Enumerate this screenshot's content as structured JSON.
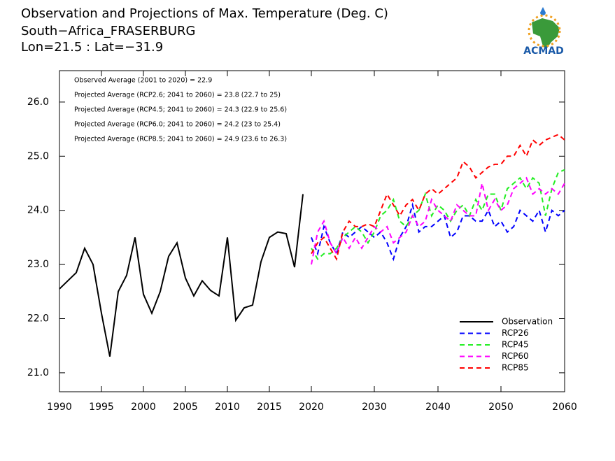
{
  "chart_data": {
    "type": "line",
    "title": "Observation and Projections of Max. Temperature (Deg. C)",
    "subtitle": "South−Africa_FRASERBURG",
    "location": "Lon=21.5 : Lat=−31.9",
    "logo_text": "ACMAD",
    "annotations": [
      "Observed Average (2001 to 2020) = 22.9",
      "Projected Average (RCP2.6; 2041 to 2060) = 23.8 (22.7 to 25)",
      "Projected Average (RCP4.5; 2041 to 2060) = 24.3 (22.9 to 25.6)",
      "Projected Average (RCP6.0; 2041 to 2060) = 24.2 (23 to 25.4)",
      "Projected Average (RCP8.5; 2041 to 2060) = 24.9 (23.6 to 26.3)"
    ],
    "xlim": [
      1990,
      2060
    ],
    "xticks": [
      1990,
      1995,
      2000,
      2005,
      2010,
      2015,
      2020,
      2030,
      2040,
      2050,
      2060
    ],
    "ylim": [
      20.65,
      26.58
    ],
    "yticks": [
      {
        "value": 21,
        "label": "21.0"
      },
      {
        "value": 22,
        "label": "22.0"
      },
      {
        "value": 23,
        "label": "23.0"
      },
      {
        "value": 24,
        "label": "24.0"
      },
      {
        "value": 25,
        "label": "25.0"
      },
      {
        "value": 26,
        "label": "26.0"
      }
    ],
    "legend": "lower right",
    "series": [
      {
        "name": "Observation",
        "color": "#000000",
        "dashed": false,
        "x": [
          1990,
          1991,
          1992,
          1993,
          1994,
          1995,
          1996,
          1997,
          1998,
          1999,
          2000,
          2001,
          2002,
          2003,
          2004,
          2005,
          2006,
          2007,
          2008,
          2009,
          2010,
          2011,
          2012,
          2013,
          2014,
          2015,
          2016,
          2017,
          2018,
          2019
        ],
        "values": [
          22.55,
          22.7,
          22.85,
          23.3,
          23.0,
          22.1,
          21.3,
          22.5,
          22.8,
          23.5,
          22.45,
          22.1,
          22.5,
          23.15,
          23.4,
          22.75,
          22.42,
          22.7,
          22.52,
          22.42,
          23.5,
          21.97,
          22.2,
          22.25,
          23.05,
          23.5,
          23.6,
          23.57,
          22.95,
          24.3
        ]
      },
      {
        "name": "RCP26",
        "color": "#0000ff",
        "dashed": true,
        "x": [
          2020,
          2021,
          2022,
          2023,
          2024,
          2025,
          2026,
          2027,
          2028,
          2029,
          2030,
          2031,
          2032,
          2033,
          2034,
          2035,
          2036,
          2037,
          2038,
          2039,
          2040,
          2041,
          2042,
          2043,
          2044,
          2045,
          2046,
          2047,
          2048,
          2049,
          2050,
          2051,
          2052,
          2053,
          2054,
          2055,
          2056,
          2057,
          2058,
          2059,
          2060
        ],
        "values": [
          23.5,
          23.2,
          23.7,
          23.4,
          23.2,
          23.6,
          23.5,
          23.6,
          23.7,
          23.6,
          23.5,
          23.6,
          23.4,
          23.1,
          23.5,
          23.7,
          24.1,
          23.6,
          23.7,
          23.7,
          23.8,
          23.9,
          23.5,
          23.6,
          23.9,
          23.9,
          23.8,
          23.8,
          24.0,
          23.7,
          23.8,
          23.6,
          23.7,
          24.0,
          23.9,
          23.8,
          24.0,
          23.6,
          24.0,
          23.9,
          24.0
        ]
      },
      {
        "name": "RCP45",
        "color": "#22ee22",
        "dashed": true,
        "x": [
          2020,
          2021,
          2022,
          2023,
          2024,
          2025,
          2026,
          2027,
          2028,
          2029,
          2030,
          2031,
          2032,
          2033,
          2034,
          2035,
          2036,
          2037,
          2038,
          2039,
          2040,
          2041,
          2042,
          2043,
          2044,
          2045,
          2046,
          2047,
          2048,
          2049,
          2050,
          2051,
          2052,
          2053,
          2054,
          2055,
          2056,
          2057,
          2058,
          2059,
          2060
        ],
        "values": [
          23.3,
          23.1,
          23.2,
          23.2,
          23.3,
          23.5,
          23.6,
          23.7,
          23.6,
          23.4,
          23.6,
          23.9,
          24.0,
          24.2,
          23.8,
          23.7,
          23.9,
          24.0,
          24.3,
          23.9,
          24.1,
          24.0,
          23.8,
          24.0,
          24.1,
          23.9,
          24.2,
          24.0,
          24.3,
          24.3,
          24.0,
          24.4,
          24.5,
          24.6,
          24.4,
          24.6,
          24.5,
          23.9,
          24.4,
          24.7,
          24.75
        ]
      },
      {
        "name": "RCP60",
        "color": "#ff00ff",
        "dashed": true,
        "x": [
          2020,
          2021,
          2022,
          2023,
          2024,
          2025,
          2026,
          2027,
          2028,
          2029,
          2030,
          2031,
          2032,
          2033,
          2034,
          2035,
          2036,
          2037,
          2038,
          2039,
          2040,
          2041,
          2042,
          2043,
          2044,
          2045,
          2046,
          2047,
          2048,
          2049,
          2050,
          2051,
          2052,
          2053,
          2054,
          2055,
          2056,
          2057,
          2058,
          2059,
          2060
        ],
        "values": [
          23.0,
          23.6,
          23.8,
          23.4,
          23.2,
          23.5,
          23.3,
          23.5,
          23.3,
          23.5,
          23.7,
          23.6,
          23.7,
          23.4,
          23.5,
          23.6,
          23.9,
          23.7,
          23.8,
          24.2,
          24.0,
          23.9,
          23.8,
          24.1,
          24.0,
          23.9,
          23.9,
          24.5,
          24.0,
          24.2,
          24.0,
          24.1,
          24.4,
          24.5,
          24.6,
          24.3,
          24.4,
          24.3,
          24.4,
          24.3,
          24.5
        ]
      },
      {
        "name": "RCP85",
        "color": "#ff0000",
        "dashed": true,
        "x": [
          2020,
          2021,
          2022,
          2023,
          2024,
          2025,
          2026,
          2027,
          2028,
          2029,
          2030,
          2031,
          2032,
          2033,
          2034,
          2035,
          2036,
          2037,
          2038,
          2039,
          2040,
          2041,
          2042,
          2043,
          2044,
          2045,
          2046,
          2047,
          2048,
          2049,
          2050,
          2051,
          2052,
          2053,
          2054,
          2055,
          2056,
          2057,
          2058,
          2059,
          2060
        ],
        "values": [
          23.2,
          23.4,
          23.5,
          23.3,
          23.1,
          23.6,
          23.8,
          23.7,
          23.7,
          23.75,
          23.7,
          24.0,
          24.3,
          24.1,
          23.9,
          24.1,
          24.2,
          24.0,
          24.3,
          24.4,
          24.3,
          24.4,
          24.5,
          24.6,
          24.9,
          24.8,
          24.6,
          24.7,
          24.8,
          24.85,
          24.85,
          25.0,
          25.0,
          25.2,
          25.0,
          25.3,
          25.2,
          25.3,
          25.35,
          25.4,
          25.3
        ]
      }
    ]
  }
}
